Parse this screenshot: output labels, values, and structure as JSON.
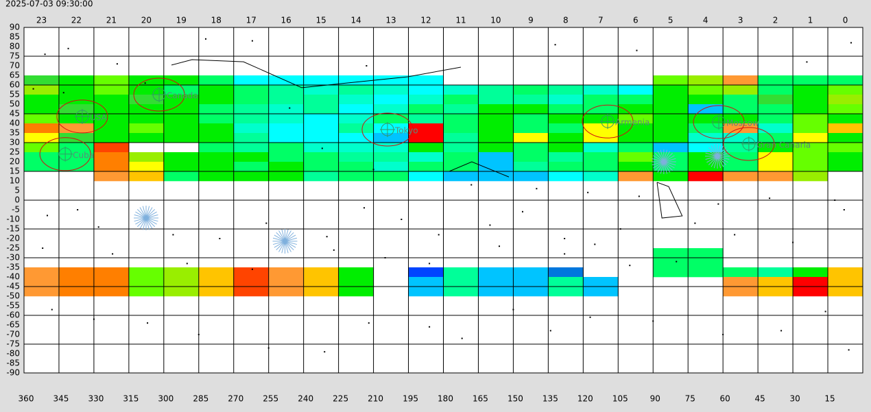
{
  "chart_data": {
    "type": "sky-map",
    "timestamp": "2025-07-03 09:30:00",
    "xlim": [
      360,
      0
    ],
    "ylim": [
      -90,
      90
    ],
    "xticks": [
      360,
      345,
      330,
      315,
      300,
      285,
      270,
      255,
      240,
      225,
      210,
      195,
      180,
      165,
      150,
      135,
      120,
      105,
      90,
      75,
      60,
      45,
      30,
      15
    ],
    "hours": [
      "23",
      "22",
      "21",
      "20",
      "19",
      "18",
      "17",
      "16",
      "15",
      "14",
      "13",
      "12",
      "11",
      "10",
      "9",
      "8",
      "7",
      "6",
      "5",
      "4",
      "3",
      "2",
      "1",
      "0"
    ],
    "yticks": [
      90,
      85,
      80,
      75,
      70,
      65,
      60,
      55,
      50,
      45,
      40,
      35,
      30,
      25,
      20,
      15,
      10,
      5,
      0,
      -5,
      -10,
      -15,
      -20,
      -25,
      -30,
      -35,
      -40,
      -45,
      -50,
      -55,
      -60,
      -65,
      -70,
      -75,
      -80,
      -85,
      -90
    ],
    "ygrid": [
      75,
      60,
      45,
      30,
      15,
      0,
      -15,
      -30,
      -45,
      -60,
      -75
    ],
    "grid": true,
    "palette": {
      "a": "#33dd33",
      "g": "#00ee00",
      "l": "#66ff00",
      "y": "#99ee00",
      "s": "#00ff66",
      "m": "#00ff99",
      "q": "#00ffcc",
      "c": "#00ffff",
      "k": "#00c4ff",
      "b": "#0044ff",
      "B": "#0077dd",
      "Y": "#ffff00",
      "O": "#ffc400",
      "o": "#ff9933",
      "n": "#ff7f00",
      "R": "#ff0000",
      "r": "#ff4400"
    },
    "heatmap": [
      {
        "dec": [
          65,
          60
        ],
        "cells": [
          "a",
          "g",
          "l",
          "g",
          "g",
          "s",
          "c",
          "c",
          "c",
          "c",
          "c",
          "c",
          ".",
          ".",
          ".",
          ".",
          ".",
          ".",
          "l",
          "y",
          "o",
          "s",
          "s",
          "s"
        ]
      },
      {
        "dec": [
          60,
          55
        ],
        "cells": [
          "y",
          "g",
          "l",
          "g",
          "s",
          "g",
          "s",
          "m",
          "q",
          "m",
          "q",
          "c",
          "q",
          "m",
          "s",
          "m",
          "q",
          "c",
          "g",
          "l",
          "y",
          "s",
          "g",
          "l"
        ]
      },
      {
        "dec": [
          55,
          50
        ],
        "cells": [
          "g",
          "g",
          "g",
          "a",
          "g",
          "g",
          "s",
          "m",
          "m",
          "q",
          "c",
          "q",
          "s",
          "m",
          "m",
          "q",
          "s",
          "s",
          "g",
          "g",
          "s",
          "a",
          "g",
          "y"
        ]
      },
      {
        "dec": [
          50,
          45
        ],
        "cells": [
          "g",
          "a",
          "g",
          "g",
          "g",
          "s",
          "m",
          "q",
          "m",
          "c",
          "q",
          "s",
          "m",
          "g",
          "g",
          "s",
          "s",
          "g",
          "g",
          "k",
          "s",
          "s",
          "g",
          "l"
        ]
      },
      {
        "dec": [
          45,
          40
        ],
        "cells": [
          "l",
          "g",
          "g",
          "g",
          "g",
          "s",
          "m",
          "q",
          "c",
          "q",
          "s",
          "m",
          "s",
          "g",
          "s",
          "g",
          "g",
          "l",
          "g",
          "g",
          "g",
          "s",
          "l",
          "g"
        ]
      },
      {
        "dec": [
          40,
          35
        ],
        "cells": [
          "n",
          "o",
          "g",
          "l",
          "g",
          "g",
          "q",
          "c",
          "c",
          "m",
          "c",
          "R",
          "s",
          "g",
          "s",
          "s",
          "Y",
          "g",
          "g",
          "s",
          "o",
          "q",
          "l",
          "O"
        ]
      },
      {
        "dec": [
          35,
          30
        ],
        "cells": [
          "Y",
          "a",
          "g",
          "g",
          "g",
          "g",
          "m",
          "c",
          "c",
          "c",
          "k",
          "R",
          "m",
          "g",
          "Y",
          "g",
          "Y",
          "g",
          "g",
          "q",
          "q",
          "s",
          "Y",
          "g"
        ]
      },
      {
        "dec": [
          30,
          25
        ],
        "cells": [
          "l",
          "s",
          "r",
          ".",
          ".",
          "s",
          "m",
          "s",
          "q",
          "q",
          "q",
          "g",
          "m",
          "g",
          "s",
          "g",
          "q",
          "s",
          "k",
          "c",
          "m",
          "g",
          "l",
          "l"
        ]
      },
      {
        "dec": [
          25,
          20
        ],
        "cells": [
          "s",
          "s",
          "n",
          "y",
          "g",
          "g",
          "g",
          "s",
          "s",
          "m",
          "m",
          "q",
          "s",
          "k",
          "s",
          "m",
          "s",
          "l",
          "s",
          "g",
          "s",
          "Y",
          "l",
          "g"
        ]
      },
      {
        "dec": [
          20,
          15
        ],
        "cells": [
          "s",
          "s",
          "n",
          "Y",
          "g",
          "g",
          "s",
          "g",
          "s",
          "s",
          "q",
          "s",
          "s",
          "k",
          "m",
          "s",
          "s",
          "g",
          "s",
          "g",
          "s",
          "Y",
          "l",
          "g"
        ]
      },
      {
        "dec": [
          15,
          10
        ],
        "cells": [
          ".",
          ".",
          "o",
          "O",
          "s",
          "g",
          "g",
          "g",
          "m",
          "s",
          "s",
          "c",
          "k",
          "k",
          "k",
          "c",
          "q",
          "o",
          "g",
          "R",
          "o",
          "o",
          "y",
          "."
        ]
      },
      {
        "dec": [
          -25,
          -30
        ],
        "cells": [
          ".",
          ".",
          ".",
          ".",
          ".",
          ".",
          ".",
          ".",
          ".",
          ".",
          ".",
          ".",
          ".",
          ".",
          ".",
          ".",
          ".",
          ".",
          "s",
          "s",
          ".",
          ".",
          ".",
          "."
        ]
      },
      {
        "dec": [
          -30,
          -35
        ],
        "cells": [
          ".",
          ".",
          ".",
          ".",
          ".",
          ".",
          ".",
          ".",
          ".",
          ".",
          ".",
          ".",
          ".",
          ".",
          ".",
          ".",
          ".",
          ".",
          "s",
          "s",
          ".",
          ".",
          ".",
          "."
        ]
      },
      {
        "dec": [
          -35,
          -40
        ],
        "cells": [
          "o",
          "n",
          "n",
          "l",
          "y",
          "O",
          "r",
          "o",
          "O",
          "g",
          ".",
          "b",
          "m",
          "k",
          "k",
          "B",
          ".",
          ".",
          "s",
          "s",
          "s",
          "m",
          "g",
          "O"
        ]
      },
      {
        "dec": [
          -40,
          -45
        ],
        "cells": [
          "o",
          "n",
          "n",
          "l",
          "y",
          "O",
          "r",
          "o",
          "O",
          "g",
          ".",
          "k",
          "m",
          "k",
          "k",
          "m",
          "k",
          ".",
          ".",
          ".",
          "o",
          "O",
          "R",
          "O"
        ]
      },
      {
        "dec": [
          -45,
          -50
        ],
        "cells": [
          "o",
          "n",
          "n",
          "l",
          "y",
          "O",
          "r",
          "o",
          "O",
          "g",
          ".",
          "k",
          "m",
          "k",
          "k",
          "m",
          "k",
          ".",
          ".",
          ".",
          "o",
          "O",
          "R",
          "O"
        ]
      }
    ],
    "stars": [
      [
        351,
        76
      ],
      [
        341,
        79
      ],
      [
        320,
        71
      ],
      [
        282,
        84
      ],
      [
        262,
        83
      ],
      [
        213,
        70
      ],
      [
        132,
        81
      ],
      [
        97,
        78
      ],
      [
        24,
        72
      ],
      [
        5,
        82
      ],
      [
        356,
        58
      ],
      [
        343,
        56
      ],
      [
        308,
        61
      ],
      [
        246,
        48
      ],
      [
        232,
        27
      ],
      [
        210,
        16
      ],
      [
        168,
        8
      ],
      [
        140,
        6
      ],
      [
        118,
        4
      ],
      [
        96,
        2
      ],
      [
        62,
        -2
      ],
      [
        40,
        1
      ],
      [
        12,
        0
      ],
      [
        350,
        -8
      ],
      [
        337,
        -5
      ],
      [
        328,
        -14
      ],
      [
        296,
        -18
      ],
      [
        276,
        -20
      ],
      [
        256,
        -12
      ],
      [
        230,
        -19
      ],
      [
        214,
        -4
      ],
      [
        198,
        -10
      ],
      [
        182,
        -18
      ],
      [
        160,
        -13
      ],
      [
        146,
        -6
      ],
      [
        128,
        -20
      ],
      [
        115,
        -23
      ],
      [
        104,
        -15
      ],
      [
        72,
        -12
      ],
      [
        55,
        -18
      ],
      [
        30,
        -22
      ],
      [
        8,
        -5
      ],
      [
        352,
        -25
      ],
      [
        322,
        -28
      ],
      [
        290,
        -33
      ],
      [
        262,
        -36
      ],
      [
        227,
        -26
      ],
      [
        205,
        -30
      ],
      [
        186,
        -33
      ],
      [
        156,
        -24
      ],
      [
        128,
        -28
      ],
      [
        100,
        -34
      ],
      [
        80,
        -32
      ],
      [
        348,
        -57
      ],
      [
        330,
        -62
      ],
      [
        307,
        -64
      ],
      [
        285,
        -70
      ],
      [
        255,
        -77
      ],
      [
        231,
        -79
      ],
      [
        212,
        -64
      ],
      [
        186,
        -66
      ],
      [
        172,
        -72
      ],
      [
        150,
        -57
      ],
      [
        134,
        -68
      ],
      [
        117,
        -61
      ],
      [
        90,
        -63
      ],
      [
        60,
        -70
      ],
      [
        35,
        -68
      ],
      [
        16,
        -58
      ],
      [
        6,
        -78
      ]
    ],
    "constellations": [
      [
        [
          296.7,
          70.4
        ],
        [
          287.9,
          73.2
        ],
        [
          265.8,
          72.1
        ],
        [
          240.8,
          58.6
        ],
        [
          195.2,
          64.3
        ],
        [
          172.5,
          69.3
        ]
      ],
      [
        [
          88.3,
          9.3
        ],
        [
          83.3,
          7.1
        ],
        [
          77.5,
          -8.2
        ],
        [
          86.2,
          -9.3
        ],
        [
          88.3,
          9.3
        ]
      ],
      [
        [
          177.5,
          15
        ],
        [
          167.8,
          20
        ],
        [
          151.9,
          12.1
        ]
      ]
    ],
    "cities": [
      {
        "name": "Canada",
        "ra": 302,
        "dec": 55
      },
      {
        "name": "USA",
        "ra": 335,
        "dec": 43.6
      },
      {
        "name": "Cuba",
        "ra": 342.3,
        "dec": 24
      },
      {
        "name": "Tokyo",
        "ra": 204,
        "dec": 36.8
      },
      {
        "name": "Armenia",
        "ra": 109.5,
        "dec": 41
      },
      {
        "name": "Moscow",
        "ra": 61.8,
        "dec": 40.7
      },
      {
        "name": "Gran Canaria",
        "ra": 48.9,
        "dec": 29.3
      }
    ],
    "planets": [
      [
        307.6,
        -9.3
      ],
      [
        248,
        -21.4
      ],
      [
        85.4,
        20
      ],
      [
        62.4,
        22.9
      ]
    ]
  }
}
